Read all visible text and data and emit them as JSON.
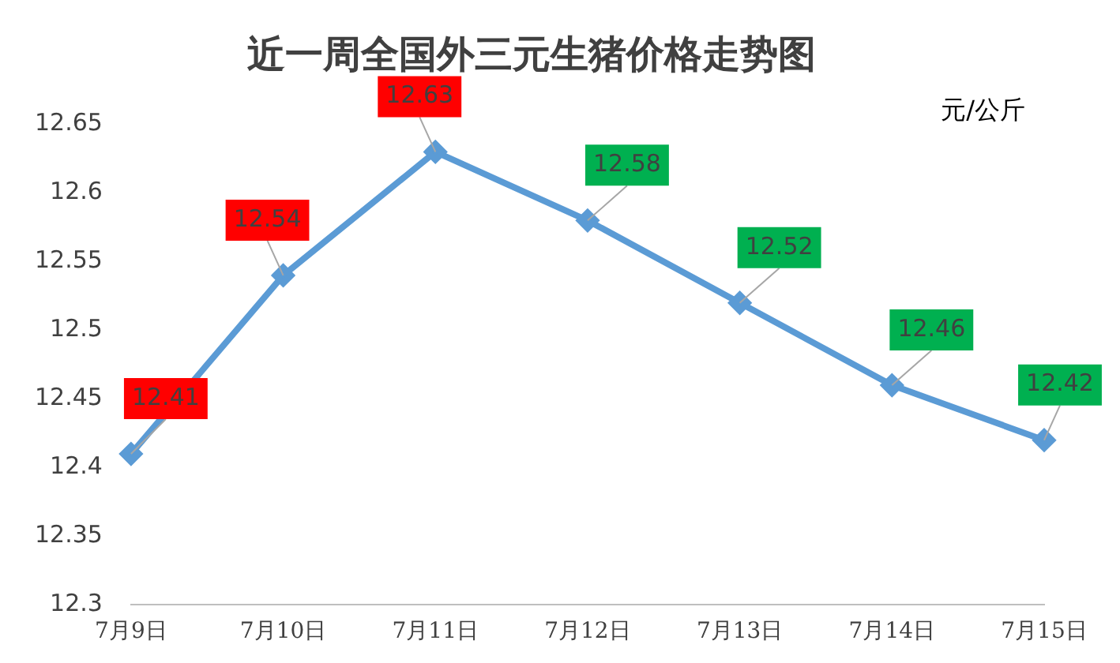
{
  "chart_data": {
    "type": "line",
    "title": "近一周全国外三元生猪价格走势图",
    "ylabel": "元/公斤",
    "categories": [
      "7月9日",
      "7月10日",
      "7月11日",
      "7月12日",
      "7月13日",
      "7月14日",
      "7月15日"
    ],
    "series": [
      {
        "color": "#5b9bd5",
        "values": [
          12.41,
          12.54,
          12.63,
          12.58,
          12.52,
          12.46,
          12.42
        ]
      }
    ],
    "ylim": [
      12.3,
      12.65
    ],
    "yticks": [
      12.3,
      12.35,
      12.4,
      12.45,
      12.5,
      12.55,
      12.6,
      12.65
    ],
    "grid": false,
    "legend": false,
    "marker": "diamond",
    "line_style": "solid",
    "data_labels": true
  }
}
